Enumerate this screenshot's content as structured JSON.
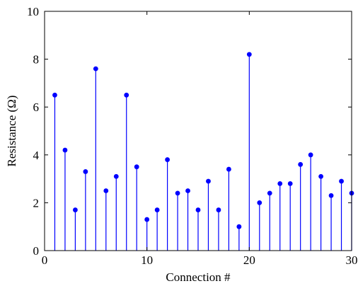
{
  "chart_data": {
    "type": "stem",
    "xlabel": "Connection #",
    "ylabel": "Resistance (Ω)",
    "xlim": [
      0,
      30
    ],
    "ylim": [
      0,
      10
    ],
    "x_ticks": [
      0,
      10,
      20,
      30
    ],
    "y_ticks": [
      0,
      2,
      4,
      6,
      8,
      10
    ],
    "grid": false,
    "color": "#0000ff",
    "x": [
      1,
      2,
      3,
      4,
      5,
      6,
      7,
      8,
      9,
      10,
      11,
      12,
      13,
      14,
      15,
      16,
      17,
      18,
      19,
      20,
      21,
      22,
      23,
      24,
      25,
      26,
      27,
      28,
      29,
      30
    ],
    "values": [
      6.5,
      4.2,
      1.7,
      3.3,
      7.6,
      2.5,
      3.1,
      6.5,
      3.5,
      1.3,
      1.7,
      3.8,
      2.4,
      2.5,
      1.7,
      2.9,
      1.7,
      3.4,
      1.0,
      8.2,
      2.0,
      2.4,
      2.8,
      2.8,
      3.6,
      4.0,
      3.1,
      2.3,
      2.9,
      2.4
    ]
  }
}
